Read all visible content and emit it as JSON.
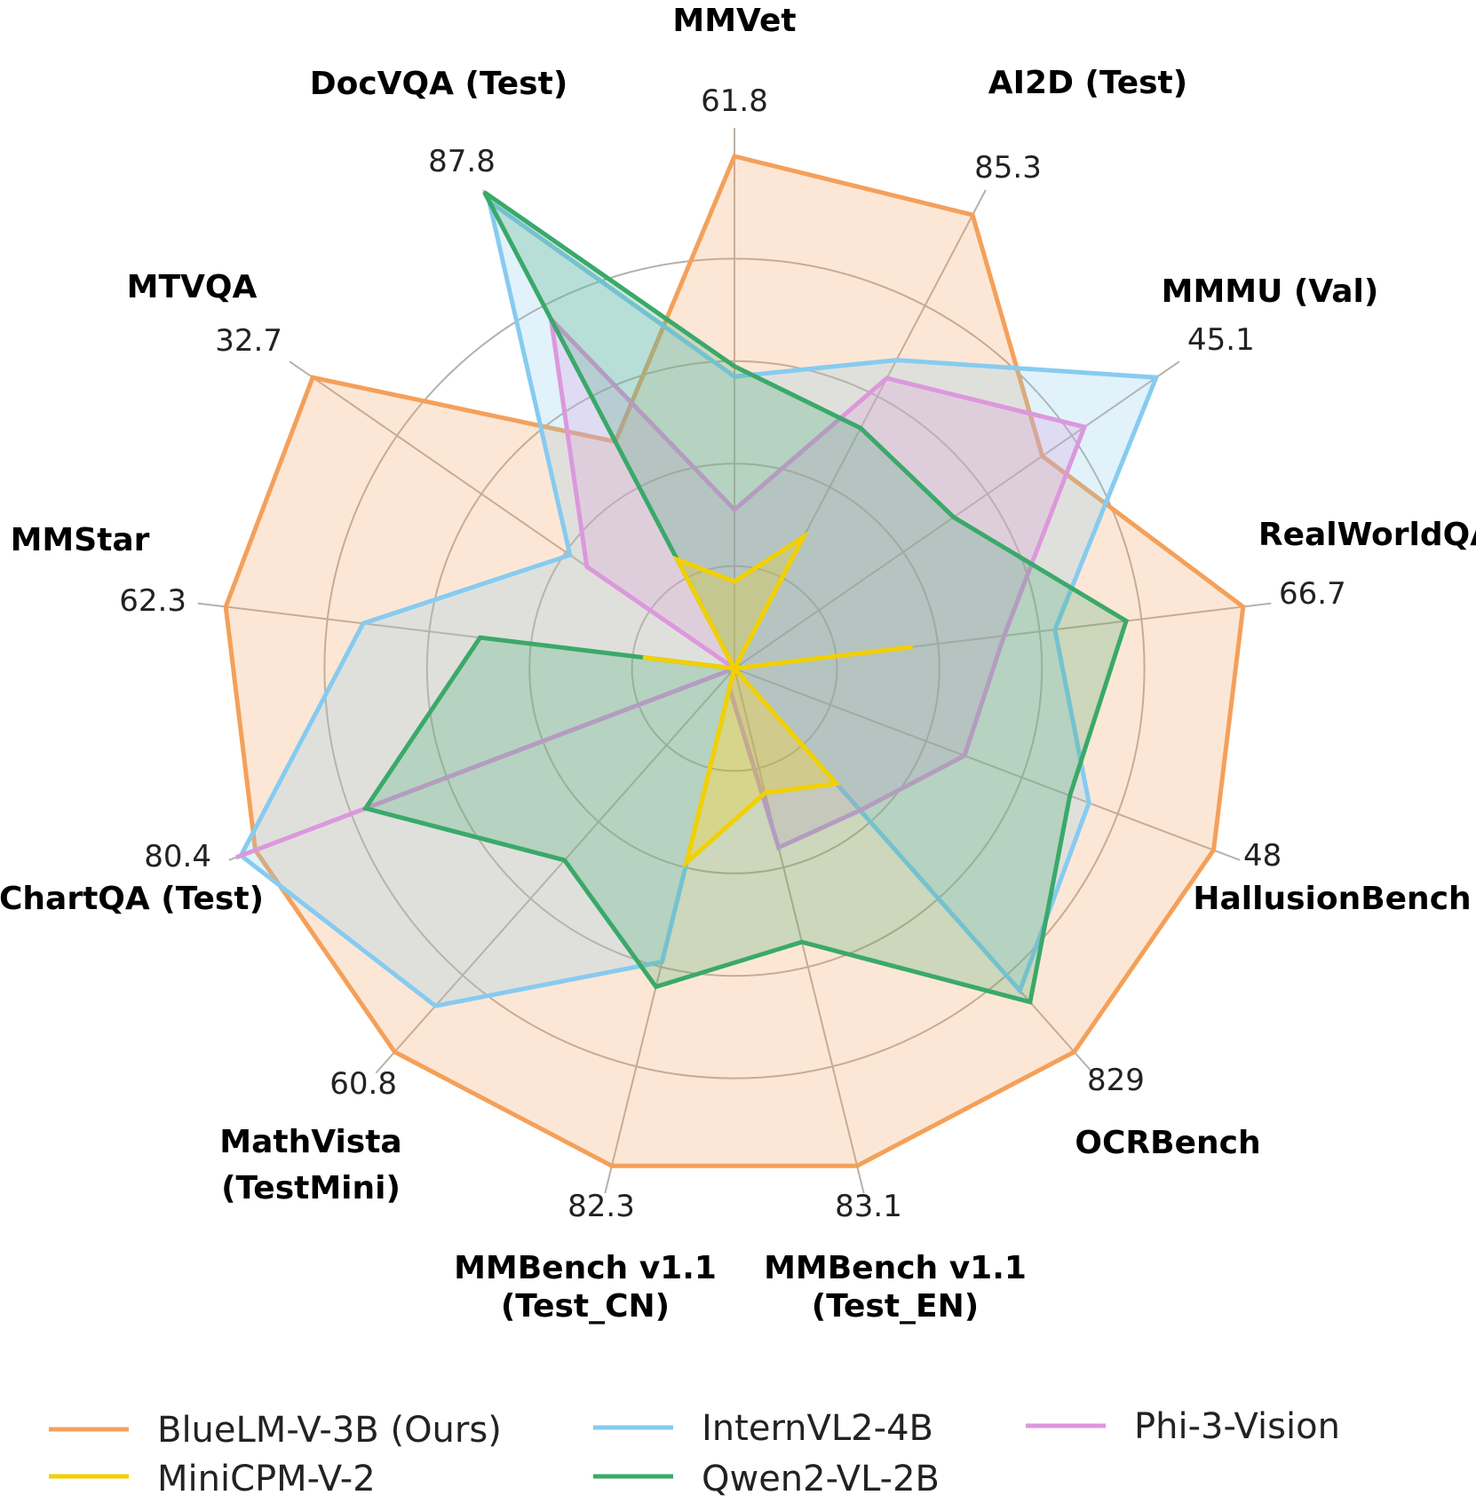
{
  "chart_data": {
    "type": "radar",
    "ring_levels": [
      0.2,
      0.4,
      0.6,
      0.8
    ],
    "axes": [
      {
        "name": "MMVet",
        "max": "61.8"
      },
      {
        "name": "AI2D (Test)",
        "max": "85.3"
      },
      {
        "name": "MMMU (Val)",
        "max": "45.1"
      },
      {
        "name": "RealWorldQA",
        "max": "66.7"
      },
      {
        "name": "HallusionBench",
        "max": "48"
      },
      {
        "name": "OCRBench",
        "max": "829"
      },
      {
        "name": "MMBench v1.1 (Test_EN)",
        "max": "83.1"
      },
      {
        "name": "MMBench v1.1 (Test_CN)",
        "max": "82.3"
      },
      {
        "name": "MathVista (TestMini)",
        "max": "60.8"
      },
      {
        "name": "ChartQA (Test)",
        "max": "80.4"
      },
      {
        "name": "MMStar",
        "max": "62.3"
      },
      {
        "name": "MTVQA",
        "max": "32.7"
      },
      {
        "name": "DocVQA (Test)",
        "max": "87.8"
      }
    ],
    "series": [
      {
        "name": "BlueLM-V-3B (Ours)",
        "color": "#f4a05a",
        "values": [
          1.0,
          1.0,
          0.73,
          1.0,
          1.0,
          1.0,
          1.0,
          1.0,
          1.0,
          1.0,
          1.0,
          1.0,
          0.5
        ]
      },
      {
        "name": "InternVL2-4B",
        "color": "#87cbf0",
        "values": [
          0.57,
          0.68,
          1.0,
          0.63,
          0.74,
          0.84,
          0.0,
          0.59,
          0.88,
          1.03,
          0.73,
          0.39,
          1.03
        ]
      },
      {
        "name": "Phi-3-Vision",
        "color": "#dc98dc",
        "values": [
          0.31,
          0.64,
          0.83,
          0.53,
          0.48,
          0.37,
          0.36,
          0.04,
          0.0,
          1.04,
          0.0,
          0.35,
          0.77
        ]
      },
      {
        "name": "Qwen2-VL-2B",
        "color": "#3aa96a",
        "values": [
          0.59,
          0.53,
          0.52,
          0.77,
          0.7,
          0.87,
          0.55,
          0.64,
          0.5,
          0.77,
          0.5,
          0.0,
          1.05
        ]
      },
      {
        "name": "MiniCPM-V-2",
        "color": "#f2d000",
        "values": [
          0.17,
          0.29,
          0.0,
          0.35,
          0.0,
          0.3,
          0.25,
          0.39,
          0.0,
          0.0,
          0.18,
          0.0,
          0.24
        ]
      }
    ]
  },
  "legend": [
    {
      "label": "BlueLM-V-3B (Ours)",
      "color": "#f4a05a"
    },
    {
      "label": "InternVL2-4B",
      "color": "#87cbf0"
    },
    {
      "label": "Phi-3-Vision",
      "color": "#dc98dc"
    },
    {
      "label": "MiniCPM-V-2",
      "color": "#f2d000"
    },
    {
      "label": "Qwen2-VL-2B",
      "color": "#3aa96a"
    }
  ]
}
